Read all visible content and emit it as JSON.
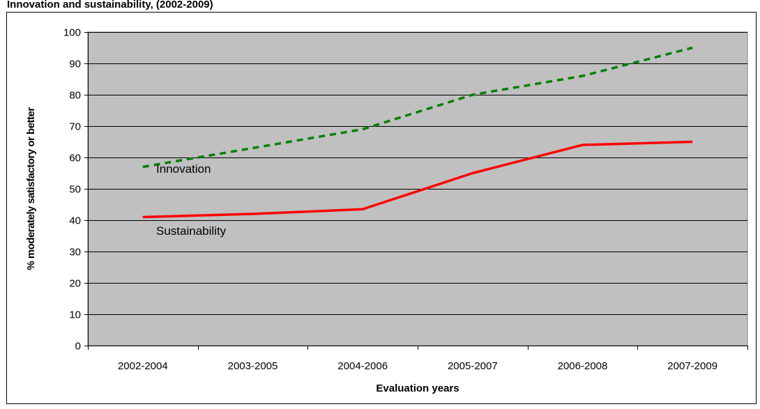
{
  "chart_data": {
    "type": "line",
    "title": "Innovation and sustainability, (2002-2009)",
    "xlabel": "Evaluation years",
    "ylabel": "% moderately satisfactory or better",
    "categories": [
      "2002-2004",
      "2003-2005",
      "2004-2006",
      "2005-2007",
      "2006-2008",
      "2007-2009"
    ],
    "ylim": [
      0,
      100
    ],
    "yticks": [
      0,
      10,
      20,
      30,
      40,
      50,
      60,
      70,
      80,
      90,
      100
    ],
    "grid": true,
    "plot_background": "#c0c0c0",
    "series": [
      {
        "name": "Innovation",
        "values": [
          57,
          63,
          69,
          80,
          86,
          95
        ],
        "color": "#008000",
        "style": "dashed"
      },
      {
        "name": "Sustainability",
        "values": [
          41,
          42,
          43.5,
          55,
          64,
          65
        ],
        "color": "#ff0000",
        "style": "solid"
      }
    ]
  }
}
